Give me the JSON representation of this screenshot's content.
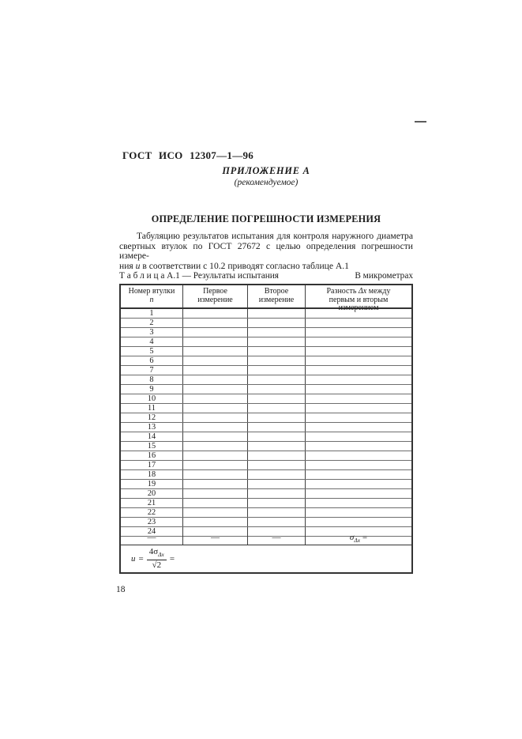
{
  "page": {
    "doc_code": "ГОСТ ИСО 12307—1—96",
    "annex_title": "ПРИЛОЖЕНИЕ А",
    "annex_subtitle": "(рекомендуемое)",
    "section_title": "ОПРЕДЕЛЕНИЕ ПОГРЕШНОСТИ ИЗМЕРЕНИЯ",
    "paragraph": {
      "line1": "Табуляцию результатов испытания для контроля наружного диаметра",
      "line2": "свертных втулок по ГОСТ 27672 с целью определения погрешности измере-",
      "line3_prefix": "ния ",
      "line3_var": "u",
      "line3_suffix": " в соответствии с 10.2 приводят согласно таблице А.1"
    },
    "page_number": "18"
  },
  "table": {
    "caption_left": "Т а б л и ц а  А.1 — Результаты испытания",
    "caption_right": "В микрометрах",
    "headers": {
      "col1_line1": "Номер втулки",
      "col1_var": "n",
      "col2_line1": "Первое",
      "col2_line2": "измерение",
      "col3_line1": "Второе",
      "col3_line2": "измерение",
      "col4_prefix": "Разность ",
      "col4_var": "Δx",
      "col4_suffix": " между первым и вторым  измерением"
    },
    "rows": [
      "1",
      "2",
      "3",
      "4",
      "5",
      "6",
      "7",
      "8",
      "9",
      "10",
      "11",
      "12",
      "13",
      "14",
      "15",
      "16",
      "17",
      "18",
      "19",
      "20",
      "21",
      "22",
      "23",
      "24"
    ],
    "summary_row": {
      "dash": "—",
      "sigma": "σ",
      "sigma_sub": "Δx",
      "equals": "="
    },
    "formula": {
      "u": "u",
      "eq": "=",
      "numerator": "4σ",
      "numerator_sub": "Δx",
      "denominator": "√2",
      "result_eq": "="
    }
  }
}
